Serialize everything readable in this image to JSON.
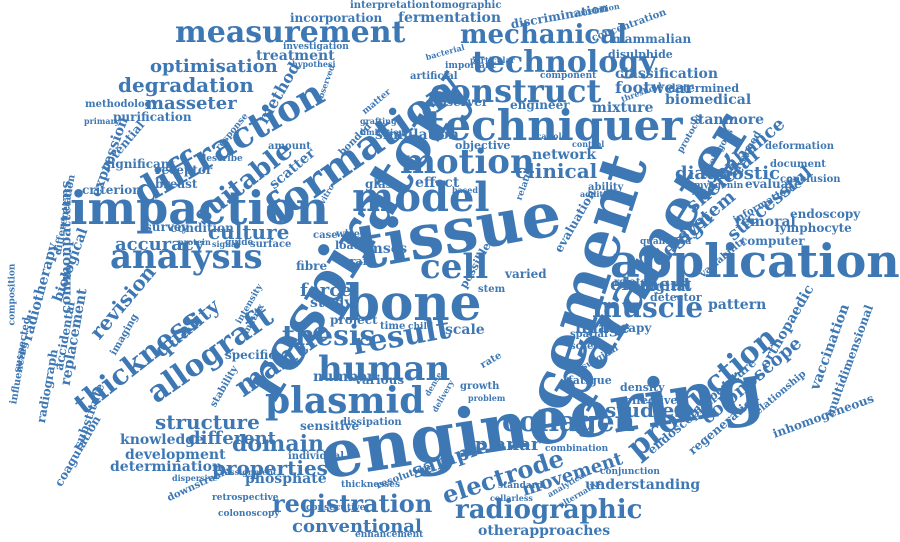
{
  "color": "#3e78b4",
  "words": [
    "engineering",
    "respiratory",
    "tissue",
    "cement",
    "parameter",
    "bone",
    "application",
    "impaction",
    "formation",
    "techniquer",
    "diffraction",
    "model",
    "human",
    "result",
    "plasmid",
    "construct",
    "motion",
    "analysis",
    "allograft",
    "cell",
    "measurement",
    "technology",
    "mechanical",
    "production",
    "collagen",
    "radiographic",
    "registration",
    "electrode",
    "thickness",
    "suitable",
    "properties",
    "domain",
    "conventional",
    "muscle",
    "mantle",
    "thesis",
    "accuracy",
    "revision",
    "structure",
    "quality",
    "culture",
    "skeletal",
    "design",
    "enhance",
    "system",
    "studies",
    "sample",
    "movement",
    "colonoscope",
    "element",
    "diagnostic",
    "degradation",
    "optimisation",
    "masseter",
    "footwear",
    "classification",
    "biomedical",
    "successful",
    "stanmore",
    "clinical",
    "network",
    "digital",
    "pattern",
    "image",
    "force",
    "different",
    "determination",
    "development",
    "knowledge",
    "understanding",
    "planar",
    "otherapproaches",
    "phosphate",
    "mixture",
    "effect",
    "temperature",
    "orthopaedic",
    "vaccination",
    "regeneration",
    "endoscopist",
    "evaluation",
    "femoral",
    "lymphocyte",
    "endoscopy",
    "computer",
    "fermentation",
    "incorporation",
    "treatment",
    "commonpatterns",
    "radiotherapy",
    "replacement",
    "biological",
    "expression",
    "potential",
    "significant",
    "criterion",
    "breast",
    "receptor",
    "purification",
    "methodology",
    "accidental",
    "coagulation",
    "radiograph",
    "substitute",
    "suspected",
    "influencing",
    "composition",
    "differentiation",
    "mammalian",
    "disulphide",
    "concentration",
    "discrimination",
    "interpretation",
    "tomographic",
    "correlation",
    "investigation",
    "important",
    "particular",
    "artificial",
    "component",
    "determined",
    "advanced",
    "deformation",
    "evaluate",
    "survey",
    "condition",
    "surface",
    "sensitive",
    "dissipation",
    "resolution",
    "consecutive",
    "enhancement",
    "retrospective",
    "colonoscopy",
    "dispersive",
    "downstream",
    "assignment",
    "individual",
    "combination",
    "conjunction",
    "alternative",
    "analytical",
    "threshold",
    "mscs",
    "study",
    "project",
    "scale",
    "fibre",
    "number",
    "various",
    "thicknesses",
    "simulation",
    "objective",
    "observer",
    "engineer",
    "glass",
    "method",
    "scatter",
    "specific",
    "stability",
    "imaging",
    "inhomogeneous",
    "multidimensional",
    "relationship",
    "quantified",
    "variability",
    "protocol",
    "autologous",
    "myogenin",
    "information",
    "document",
    "conclusion",
    "fatigue",
    "spatial",
    "screen",
    "surgical",
    "therapy",
    "related",
    "detector",
    "density",
    "effective",
    "growth",
    "problem",
    "delivery",
    "dense",
    "time",
    "child",
    "load",
    "wire",
    "case",
    "guide",
    "signal",
    "protein",
    "intensity",
    "matrix",
    "possible",
    "stem",
    "rate",
    "varied",
    "graft",
    "vitro",
    "ability",
    "addition",
    "based",
    "relate",
    "control",
    "scaffold",
    "grafting",
    "limitation",
    "matter",
    "bonded",
    "amount",
    "describe",
    "response",
    "primary",
    "hypothesi",
    "observed",
    "bacterial",
    "collarless",
    "standard",
    "alignment"
  ]
}
